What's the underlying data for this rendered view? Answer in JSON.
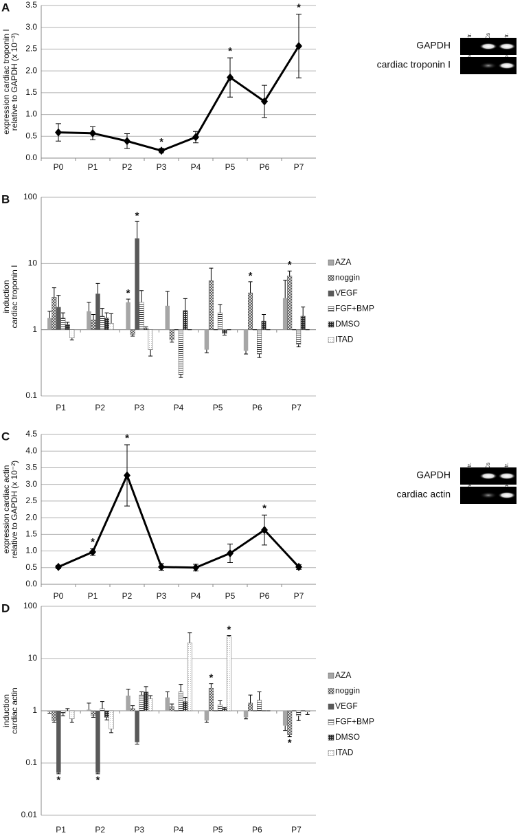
{
  "chart_data": [
    {
      "type": "line",
      "panel": "A",
      "ylabel": [
        "expression cardiac troponin I",
        "relative to GAPDH (x 10⁻³)"
      ],
      "categories": [
        "P0",
        "P1",
        "P2",
        "P3",
        "P4",
        "P5",
        "P6",
        "P7"
      ],
      "values": [
        0.59,
        0.57,
        0.39,
        0.17,
        0.48,
        1.85,
        1.3,
        2.57
      ],
      "errors": [
        0.2,
        0.15,
        0.17,
        0.05,
        0.13,
        0.45,
        0.37,
        0.73
      ],
      "significance": [
        null,
        null,
        null,
        "*",
        null,
        "*",
        null,
        "*"
      ],
      "color": "#000000",
      "ylim": [
        0,
        3.5
      ],
      "yticks": [
        {
          "value": 0,
          "label": "0.0"
        },
        0.5,
        {
          "value": 1,
          "label": "1.0"
        },
        1.5,
        {
          "value": 2,
          "label": "2.0"
        },
        2.5,
        {
          "value": 3,
          "label": "3.0"
        },
        3.5
      ],
      "grid": true,
      "gel": {
        "lanes": [
          "neg. contr.",
          "hMSCs",
          "pos. contr."
        ],
        "bands": [
          "GAPDH",
          "cardiac troponin I"
        ]
      }
    },
    {
      "type": "bar",
      "panel": "B",
      "log_scale": true,
      "ylabel": [
        "induction",
        "cardiac troponin I"
      ],
      "categories": [
        "P1",
        "P2",
        "P3",
        "P4",
        "P5",
        "P6",
        "P7"
      ],
      "ylim": [
        0.1,
        100
      ],
      "yticks": [
        0.1,
        1,
        10,
        100
      ],
      "grid": true,
      "legend": "right",
      "series": [
        {
          "name": "AZA",
          "color": "#a6a6a6",
          "pattern": "solid",
          "values": [
            1.5,
            1.9,
            2.6,
            2.3,
            0.5,
            0.48,
            3.0
          ],
          "errors": [
            0.4,
            0.7,
            0.3,
            1.5,
            0.05,
            0.05,
            2.6
          ],
          "significance": [
            null,
            null,
            "*",
            null,
            null,
            null,
            null
          ]
        },
        {
          "name": "noggin",
          "color": "#555555",
          "pattern": "crosshatch",
          "values": [
            3.1,
            1.4,
            0.85,
            0.7,
            5.5,
            3.6,
            6.5
          ],
          "errors": [
            1.2,
            0.3,
            0.05,
            0.05,
            3,
            1.7,
            1.2
          ],
          "significance": [
            null,
            null,
            null,
            null,
            null,
            "*",
            "*"
          ]
        },
        {
          "name": "VEGF",
          "color": "#595959",
          "pattern": "solid",
          "values": [
            2.2,
            3.5,
            24,
            1.0,
            1.0,
            1.0,
            1.0
          ],
          "errors": [
            1.1,
            1.5,
            19,
            0,
            0,
            0,
            0
          ],
          "significance": [
            null,
            null,
            "*",
            null,
            null,
            null,
            null
          ]
        },
        {
          "name": "FGF+BMP",
          "color": "#444444",
          "pattern": "stripes",
          "values": [
            1.5,
            1.6,
            2.6,
            0.21,
            1.8,
            0.43,
            0.6
          ],
          "errors": [
            0.3,
            0.5,
            1.3,
            0.02,
            0.6,
            0.05,
            0.05
          ],
          "significance": [
            null,
            null,
            null,
            null,
            null,
            null,
            null
          ]
        },
        {
          "name": "DMSO",
          "color": "#333333",
          "pattern": "dots",
          "values": [
            1.2,
            1.5,
            1.05,
            1.95,
            0.88,
            1.35,
            1.6
          ],
          "errors": [
            0.1,
            0.3,
            0.05,
            1.0,
            0.05,
            0.35,
            0.6
          ],
          "significance": [
            null,
            null,
            null,
            null,
            null,
            null,
            null
          ]
        },
        {
          "name": "ITAD",
          "color": "#888888",
          "pattern": "finedots",
          "values": [
            0.75,
            1.25,
            0.5,
            1.0,
            1.0,
            1.0,
            1.0
          ],
          "errors": [
            0.05,
            0.5,
            0.1,
            0,
            0,
            0,
            0
          ],
          "significance": [
            null,
            null,
            null,
            null,
            null,
            null,
            null
          ]
        }
      ]
    },
    {
      "type": "line",
      "panel": "C",
      "ylabel": [
        "expression cardiac actin",
        "relative to GAPDH (x 10⁻²)"
      ],
      "categories": [
        "P0",
        "P1",
        "P2",
        "P3",
        "P4",
        "P5",
        "P6",
        "P7"
      ],
      "values": [
        0.52,
        0.97,
        3.27,
        0.52,
        0.5,
        0.93,
        1.63,
        0.52
      ],
      "errors": [
        0.05,
        0.1,
        0.92,
        0.1,
        0.1,
        0.28,
        0.45,
        0.07
      ],
      "significance": [
        null,
        "*",
        "*",
        null,
        null,
        null,
        "*",
        null
      ],
      "color": "#000000",
      "ylim": [
        0,
        4.5
      ],
      "yticks": [
        {
          "value": 0,
          "label": "0.0"
        },
        0.5,
        {
          "value": 1,
          "label": "1.0"
        },
        1.5,
        {
          "value": 2,
          "label": "2.0"
        },
        2.5,
        {
          "value": 3,
          "label": "3.0"
        },
        3.5,
        {
          "value": 4,
          "label": "4.0"
        },
        4.5
      ],
      "grid": true,
      "gel": {
        "lanes": [
          "neg. contr.",
          "hMSCs",
          "pos. contr."
        ],
        "bands": [
          "GAPDH",
          "cardiac actin"
        ]
      }
    },
    {
      "type": "bar",
      "panel": "D",
      "log_scale": true,
      "ylabel": [
        "induction",
        "cardiac actin"
      ],
      "categories": [
        "P1",
        "P2",
        "P3",
        "P4",
        "P5",
        "P6",
        "P7"
      ],
      "ylim": [
        0.01,
        100
      ],
      "yticks": [
        0.01,
        0.1,
        1,
        10,
        100
      ],
      "grid": true,
      "legend": "right",
      "series": [
        {
          "name": "AZA",
          "color": "#a6a6a6",
          "pattern": "solid",
          "values": [
            0.95,
            1.05,
            1.95,
            1.8,
            0.65,
            0.75,
            0.52
          ],
          "errors": [
            0.05,
            0.35,
            0.65,
            0.5,
            0.05,
            0.05,
            0.1
          ],
          "significance": [
            null,
            null,
            null,
            null,
            null,
            null,
            null
          ]
        },
        {
          "name": "noggin",
          "color": "#555555",
          "pattern": "crosshatch",
          "values": [
            0.65,
            0.8,
            1.1,
            1.2,
            2.7,
            1.4,
            0.35
          ],
          "errors": [
            0.05,
            0.05,
            0.15,
            0.15,
            0.6,
            0.6,
            0.03
          ],
          "significance": [
            null,
            null,
            null,
            null,
            "*",
            null,
            "*"
          ]
        },
        {
          "name": "VEGF",
          "color": "#595959",
          "pattern": "solid",
          "values": [
            0.065,
            0.065,
            0.25,
            1.0,
            1.0,
            1.0,
            1.0
          ],
          "errors": [
            0.003,
            0.003,
            0.02,
            0,
            0,
            0,
            0
          ],
          "significance": [
            "*",
            "*",
            null,
            null,
            null,
            null,
            null
          ]
        },
        {
          "name": "FGF+BMP",
          "color": "#444444",
          "pattern": "stripes",
          "values": [
            0.9,
            1.1,
            2.0,
            2.3,
            1.3,
            1.6,
            0.8
          ],
          "errors": [
            0.1,
            0.4,
            0.3,
            0.9,
            0.25,
            0.7,
            0.15
          ],
          "significance": [
            null,
            null,
            null,
            null,
            null,
            null,
            null
          ]
        },
        {
          "name": "DMSO",
          "color": "#333333",
          "pattern": "dots",
          "values": [
            1.0,
            0.75,
            2.3,
            1.5,
            1.1,
            1.0,
            1.0
          ],
          "errors": [
            0.1,
            0.08,
            0.6,
            0.3,
            0.05,
            0,
            0
          ],
          "significance": [
            null,
            null,
            null,
            null,
            null,
            null,
            null
          ]
        },
        {
          "name": "ITAD",
          "color": "#888888",
          "pattern": "finedots",
          "values": [
            0.7,
            0.45,
            1.7,
            20,
            26,
            1.0,
            0.95
          ],
          "errors": [
            0.1,
            0.07,
            0.25,
            11,
            1.5,
            0,
            0.1
          ],
          "significance": [
            null,
            null,
            null,
            null,
            "*",
            null,
            null
          ]
        }
      ]
    }
  ]
}
